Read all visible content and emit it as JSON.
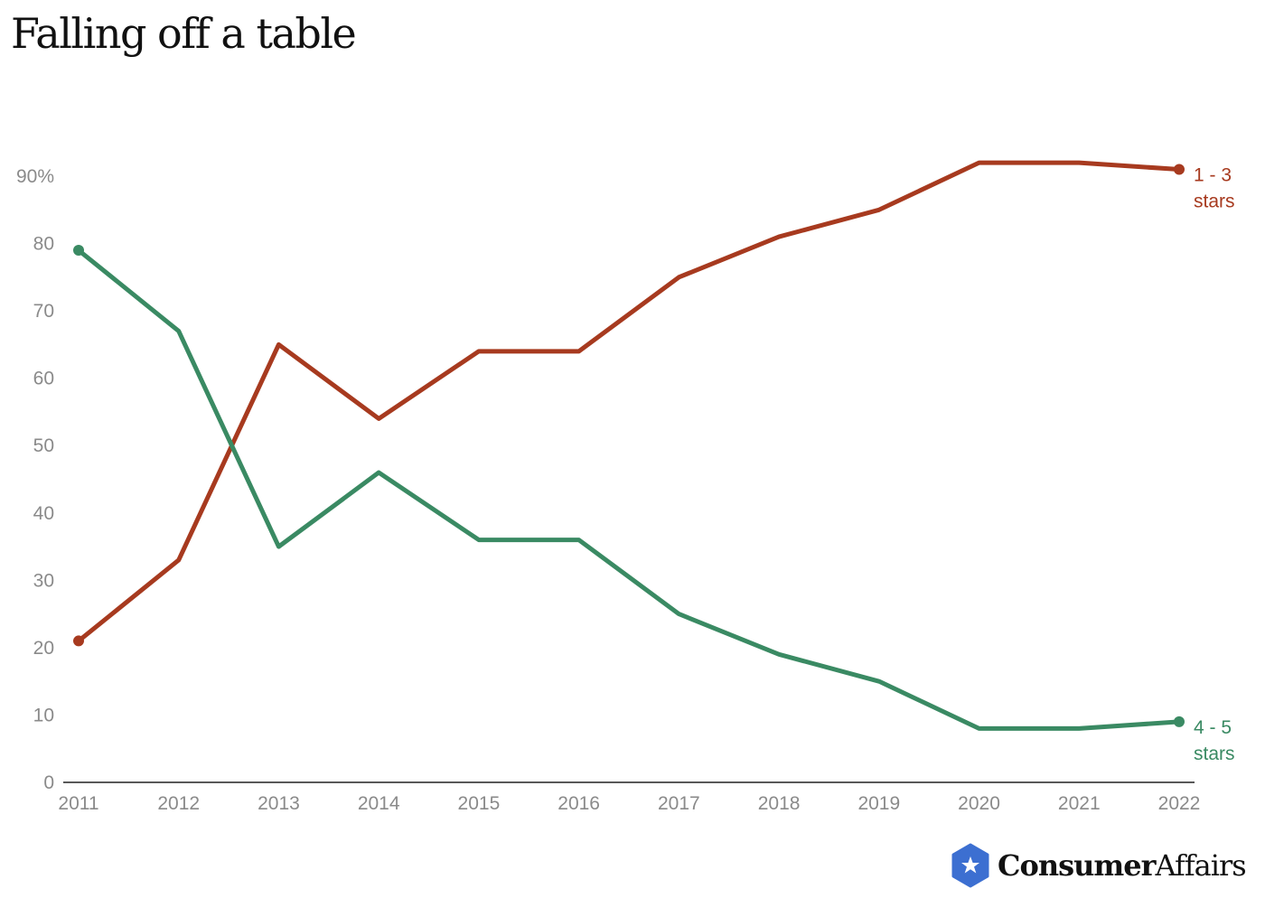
{
  "chart_data": {
    "type": "line",
    "title": "Falling off a table",
    "x": [
      "2011",
      "2012",
      "2013",
      "2014",
      "2015",
      "2016",
      "2017",
      "2018",
      "2019",
      "2020",
      "2021",
      "2022"
    ],
    "y_ticks": [
      "0",
      "10",
      "20",
      "30",
      "40",
      "50",
      "60",
      "70",
      "80",
      "90%"
    ],
    "ylim": [
      0,
      90
    ],
    "grid": false,
    "series": [
      {
        "name": "1 - 3 stars",
        "label_lines": [
          "1 - 3",
          "stars"
        ],
        "color": "#a73a1f",
        "values": [
          21,
          33,
          65,
          54,
          64,
          64,
          75,
          81,
          85,
          92,
          92,
          91
        ]
      },
      {
        "name": "4 - 5 stars",
        "label_lines": [
          "4 - 5",
          "stars"
        ],
        "color": "#3a8a63",
        "values": [
          79,
          67,
          35,
          46,
          36,
          36,
          25,
          19,
          15,
          8,
          8,
          9
        ]
      }
    ]
  },
  "logo": {
    "text_bold": "Consumer",
    "text_regular": "Affairs",
    "color": "#3c6fd1"
  }
}
